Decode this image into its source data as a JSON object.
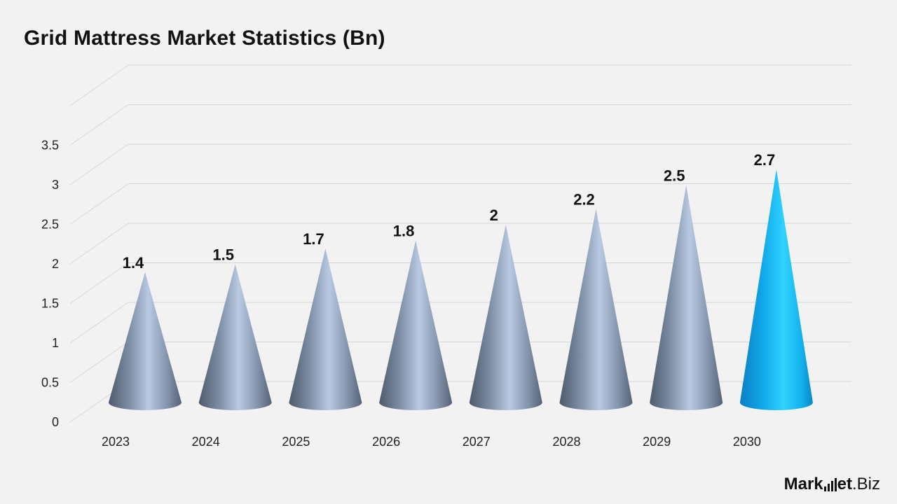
{
  "chart_data": {
    "type": "bar",
    "title": "Grid Mattress Market Statistics (Bn)",
    "categories": [
      "2023",
      "2024",
      "2025",
      "2026",
      "2027",
      "2028",
      "2029",
      "2030"
    ],
    "values": [
      1.4,
      1.5,
      1.7,
      1.8,
      2,
      2.2,
      2.5,
      2.7
    ],
    "value_labels": [
      "1.4",
      "1.5",
      "1.7",
      "1.8",
      "2",
      "2.2",
      "2.5",
      "2.7"
    ],
    "ylim": [
      0,
      3.5
    ],
    "yticks": [
      "0",
      "0.5",
      "1",
      "1.5",
      "2",
      "2.5",
      "3",
      "3.5"
    ],
    "xlabel": "",
    "ylabel": "",
    "grid": true,
    "bar_shape": "cone",
    "colors": {
      "default": "#8a9ab3",
      "highlight": "#12b4ee"
    },
    "highlight_index": 7
  },
  "brand": {
    "name_bold": "Mark",
    "name_mid": "et",
    "name_end": ".Biz"
  }
}
